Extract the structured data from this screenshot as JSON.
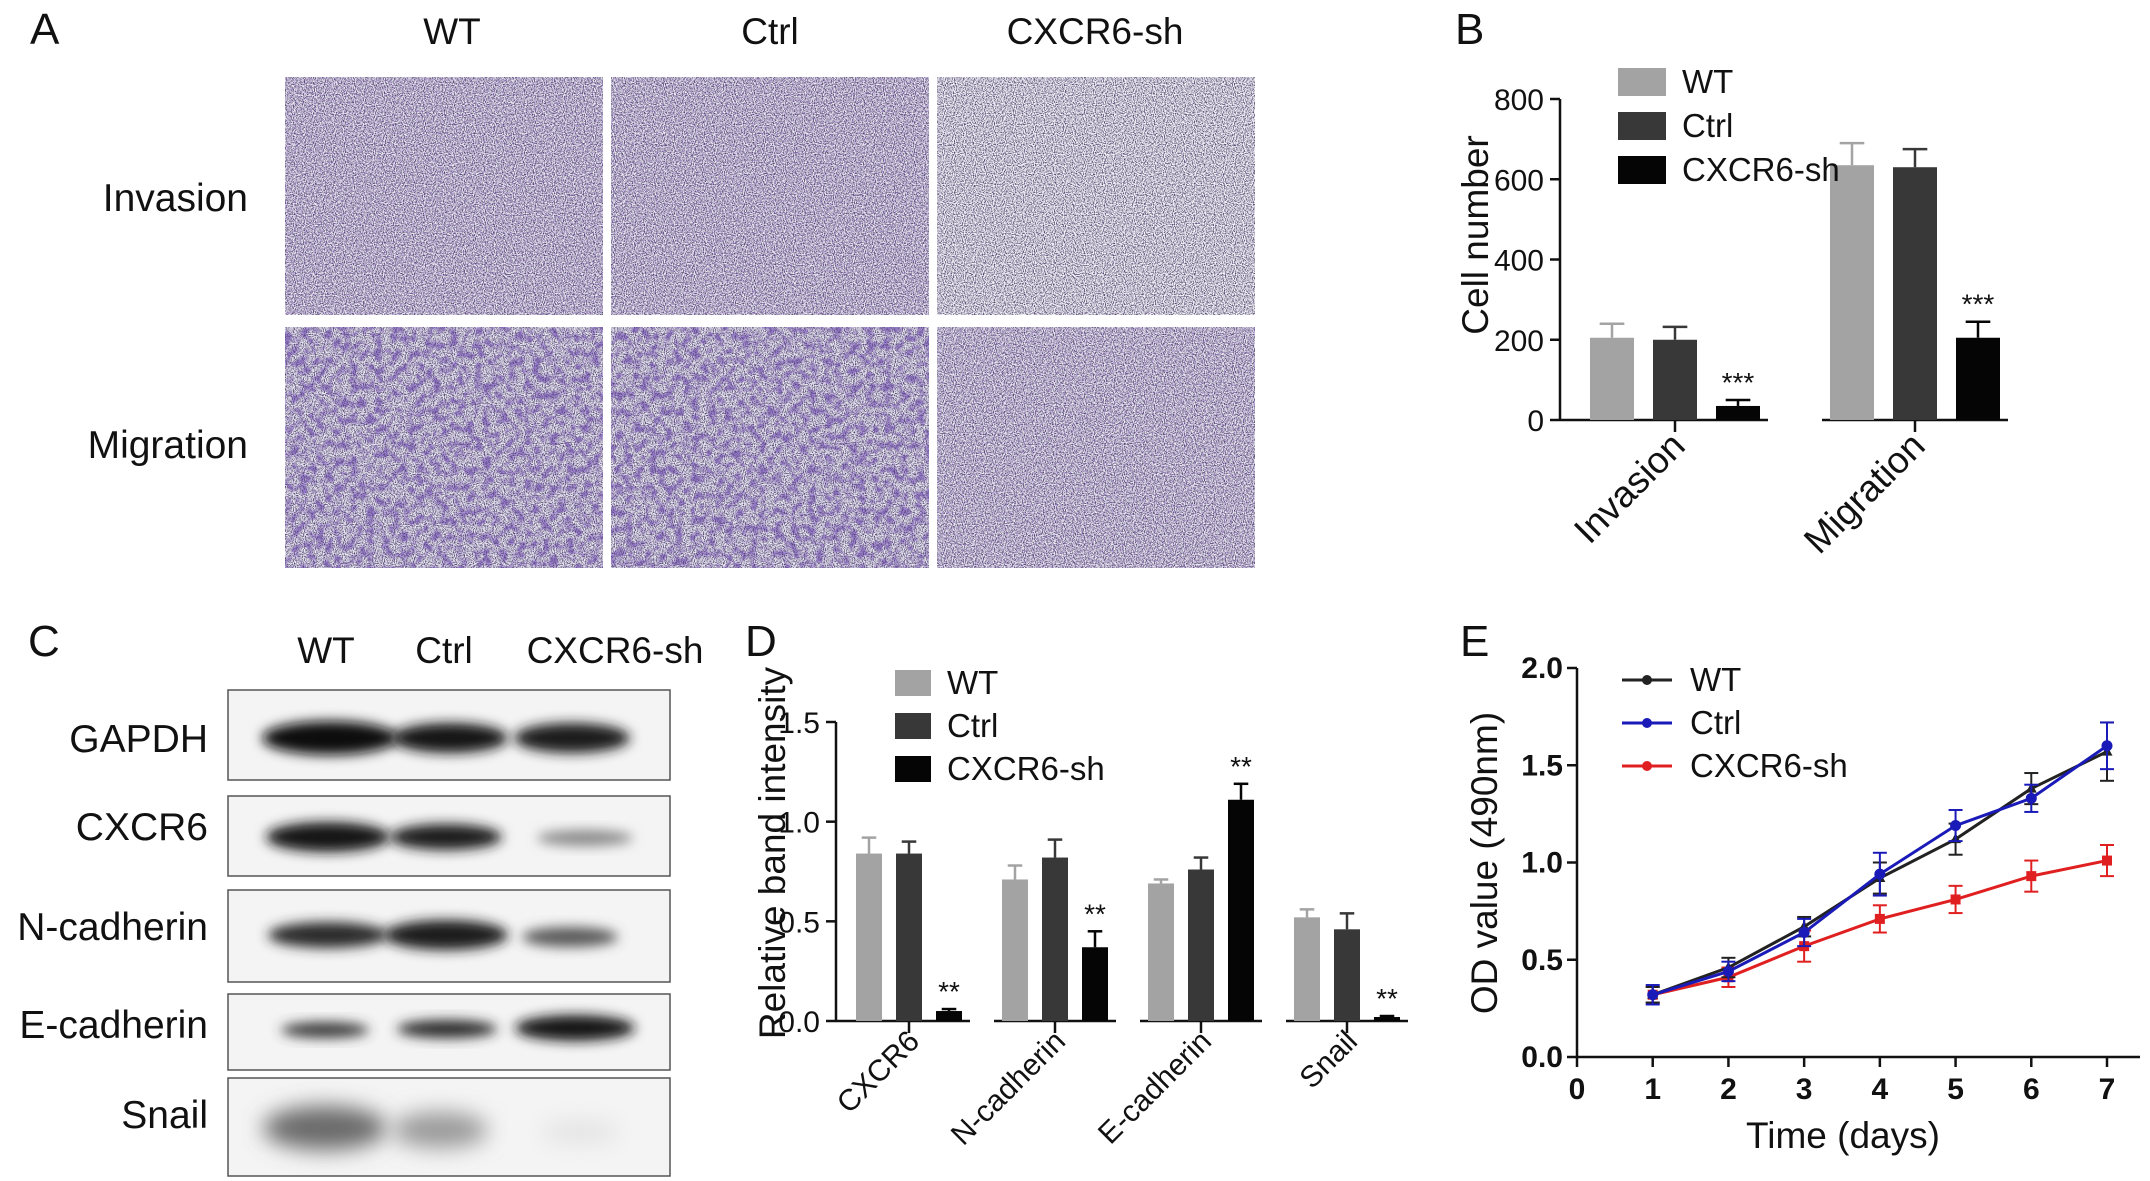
{
  "panels": {
    "A": {
      "label": "A",
      "columns": [
        "WT",
        "Ctrl",
        "CXCR6-sh"
      ],
      "rows": [
        "Invasion",
        "Migration"
      ]
    },
    "C": {
      "label": "C",
      "columns": [
        "WT",
        "Ctrl",
        "CXCR6-sh"
      ],
      "rows": [
        "GAPDH",
        "CXCR6",
        "N-cadherin",
        "E-cadherin",
        "Snail"
      ]
    }
  },
  "colors": {
    "WT": "#a3a3a3",
    "Ctrl": "#383838",
    "CXCR6-sh": "#050505",
    "line_WT": "#222222",
    "line_Ctrl": "#1a1ab8",
    "line_CXCR6": "#e02020"
  },
  "chart_data": [
    {
      "panel": "B",
      "type": "bar",
      "title": "",
      "xlabel": "",
      "ylabel": "Cell number",
      "ylim": [
        0,
        800
      ],
      "yticks": [
        0,
        200,
        400,
        600,
        800
      ],
      "categories": [
        "Invasion",
        "Migration"
      ],
      "series": [
        {
          "name": "WT",
          "values": [
            205,
            635
          ],
          "errors": [
            35,
            55
          ]
        },
        {
          "name": "Ctrl",
          "values": [
            200,
            630
          ],
          "errors": [
            32,
            45
          ]
        },
        {
          "name": "CXCR6-sh",
          "values": [
            35,
            205
          ],
          "errors": [
            15,
            40
          ]
        }
      ],
      "annotations": [
        "***",
        "***"
      ],
      "legend": "top-left"
    },
    {
      "panel": "D",
      "type": "bar",
      "title": "",
      "xlabel": "",
      "ylabel": "Relative band intensity",
      "ylim": [
        0,
        1.5
      ],
      "yticks": [
        "0.0",
        "0.5",
        "1.0",
        "1.5"
      ],
      "categories": [
        "CXCR6",
        "N-cadherin",
        "E-cadherin",
        "Snail"
      ],
      "series": [
        {
          "name": "WT",
          "values": [
            0.84,
            0.71,
            0.69,
            0.52
          ],
          "errors": [
            0.08,
            0.07,
            0.02,
            0.04
          ]
        },
        {
          "name": "Ctrl",
          "values": [
            0.84,
            0.82,
            0.76,
            0.46
          ],
          "errors": [
            0.06,
            0.09,
            0.06,
            0.08
          ]
        },
        {
          "name": "CXCR6-sh",
          "values": [
            0.05,
            0.37,
            1.11,
            0.02
          ],
          "errors": [
            0.01,
            0.08,
            0.08,
            0.005
          ]
        }
      ],
      "annotations": [
        "**",
        "**",
        "**",
        "**"
      ],
      "legend": "top-left"
    },
    {
      "panel": "E",
      "type": "line",
      "title": "",
      "xlabel": "Time (days)",
      "ylabel": "OD value (490nm)",
      "xlim": [
        0,
        7
      ],
      "ylim": [
        0,
        2
      ],
      "xticks": [
        "0",
        "1",
        "2",
        "3",
        "4",
        "5",
        "6",
        "7"
      ],
      "yticks": [
        "0.0",
        "0.5",
        "1.0",
        "1.5",
        "2.0"
      ],
      "x": [
        1,
        2,
        3,
        4,
        5,
        6,
        7
      ],
      "series": [
        {
          "name": "WT",
          "values": [
            0.32,
            0.46,
            0.67,
            0.92,
            1.12,
            1.38,
            1.57
          ],
          "errors": [
            0.04,
            0.05,
            0.05,
            0.08,
            0.08,
            0.08,
            0.15
          ]
        },
        {
          "name": "Ctrl",
          "values": [
            0.32,
            0.44,
            0.64,
            0.94,
            1.19,
            1.33,
            1.6
          ],
          "errors": [
            0.05,
            0.05,
            0.07,
            0.11,
            0.08,
            0.07,
            0.12
          ]
        },
        {
          "name": "CXCR6-sh",
          "values": [
            0.32,
            0.41,
            0.57,
            0.71,
            0.81,
            0.93,
            1.01
          ],
          "errors": [
            0.04,
            0.05,
            0.08,
            0.07,
            0.07,
            0.08,
            0.08
          ]
        }
      ],
      "legend": "top-left"
    }
  ]
}
